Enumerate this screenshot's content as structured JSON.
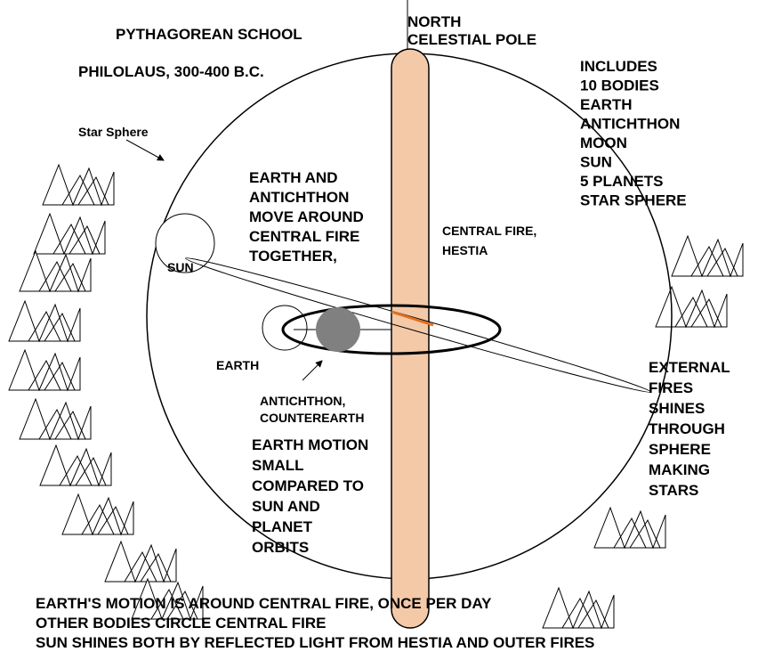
{
  "title": "PYTHAGOREAN SCHOOL",
  "subtitle": "PHILOLAUS, 300-400 B.C.",
  "star_sphere_label": "Star Sphere",
  "pole_label": [
    "NORTH",
    "CELESTIAL POLE"
  ],
  "bodies_list": [
    "INCLUDES",
    "10 BODIES",
    "EARTH",
    "ANTICHTHON",
    "MOON",
    "SUN",
    "5 PLANETS",
    "STAR SPHERE"
  ],
  "earth_antichthon_note": [
    "EARTH AND",
    "ANTICHTHON",
    "MOVE AROUND",
    "CENTRAL FIRE",
    "TOGETHER,"
  ],
  "central_fire_label": [
    "CENTRAL FIRE,",
    "HESTIA"
  ],
  "sun_label": "SUN",
  "earth_label": "EARTH",
  "antichthon_label": [
    "ANTICHTHON,",
    "COUNTEREARTH"
  ],
  "earth_motion_note": [
    "EARTH MOTION",
    "SMALL",
    "COMPARED TO",
    "SUN AND",
    "PLANET",
    "ORBITS"
  ],
  "external_fires_note": [
    "EXTERNAL",
    "FIRES",
    "SHINES",
    "THROUGH",
    "SPHERE",
    "MAKING",
    "STARS"
  ],
  "footer": [
    "EARTH'S MOTION IS AROUND CENTRAL FIRE,  ONCE PER DAY",
    "OTHER BODIES CIRCLE CENTRAL FIRE",
    "SUN SHINES BOTH BY REFLECTED LIGHT FROM HESTIA AND  OUTER FIRES"
  ]
}
